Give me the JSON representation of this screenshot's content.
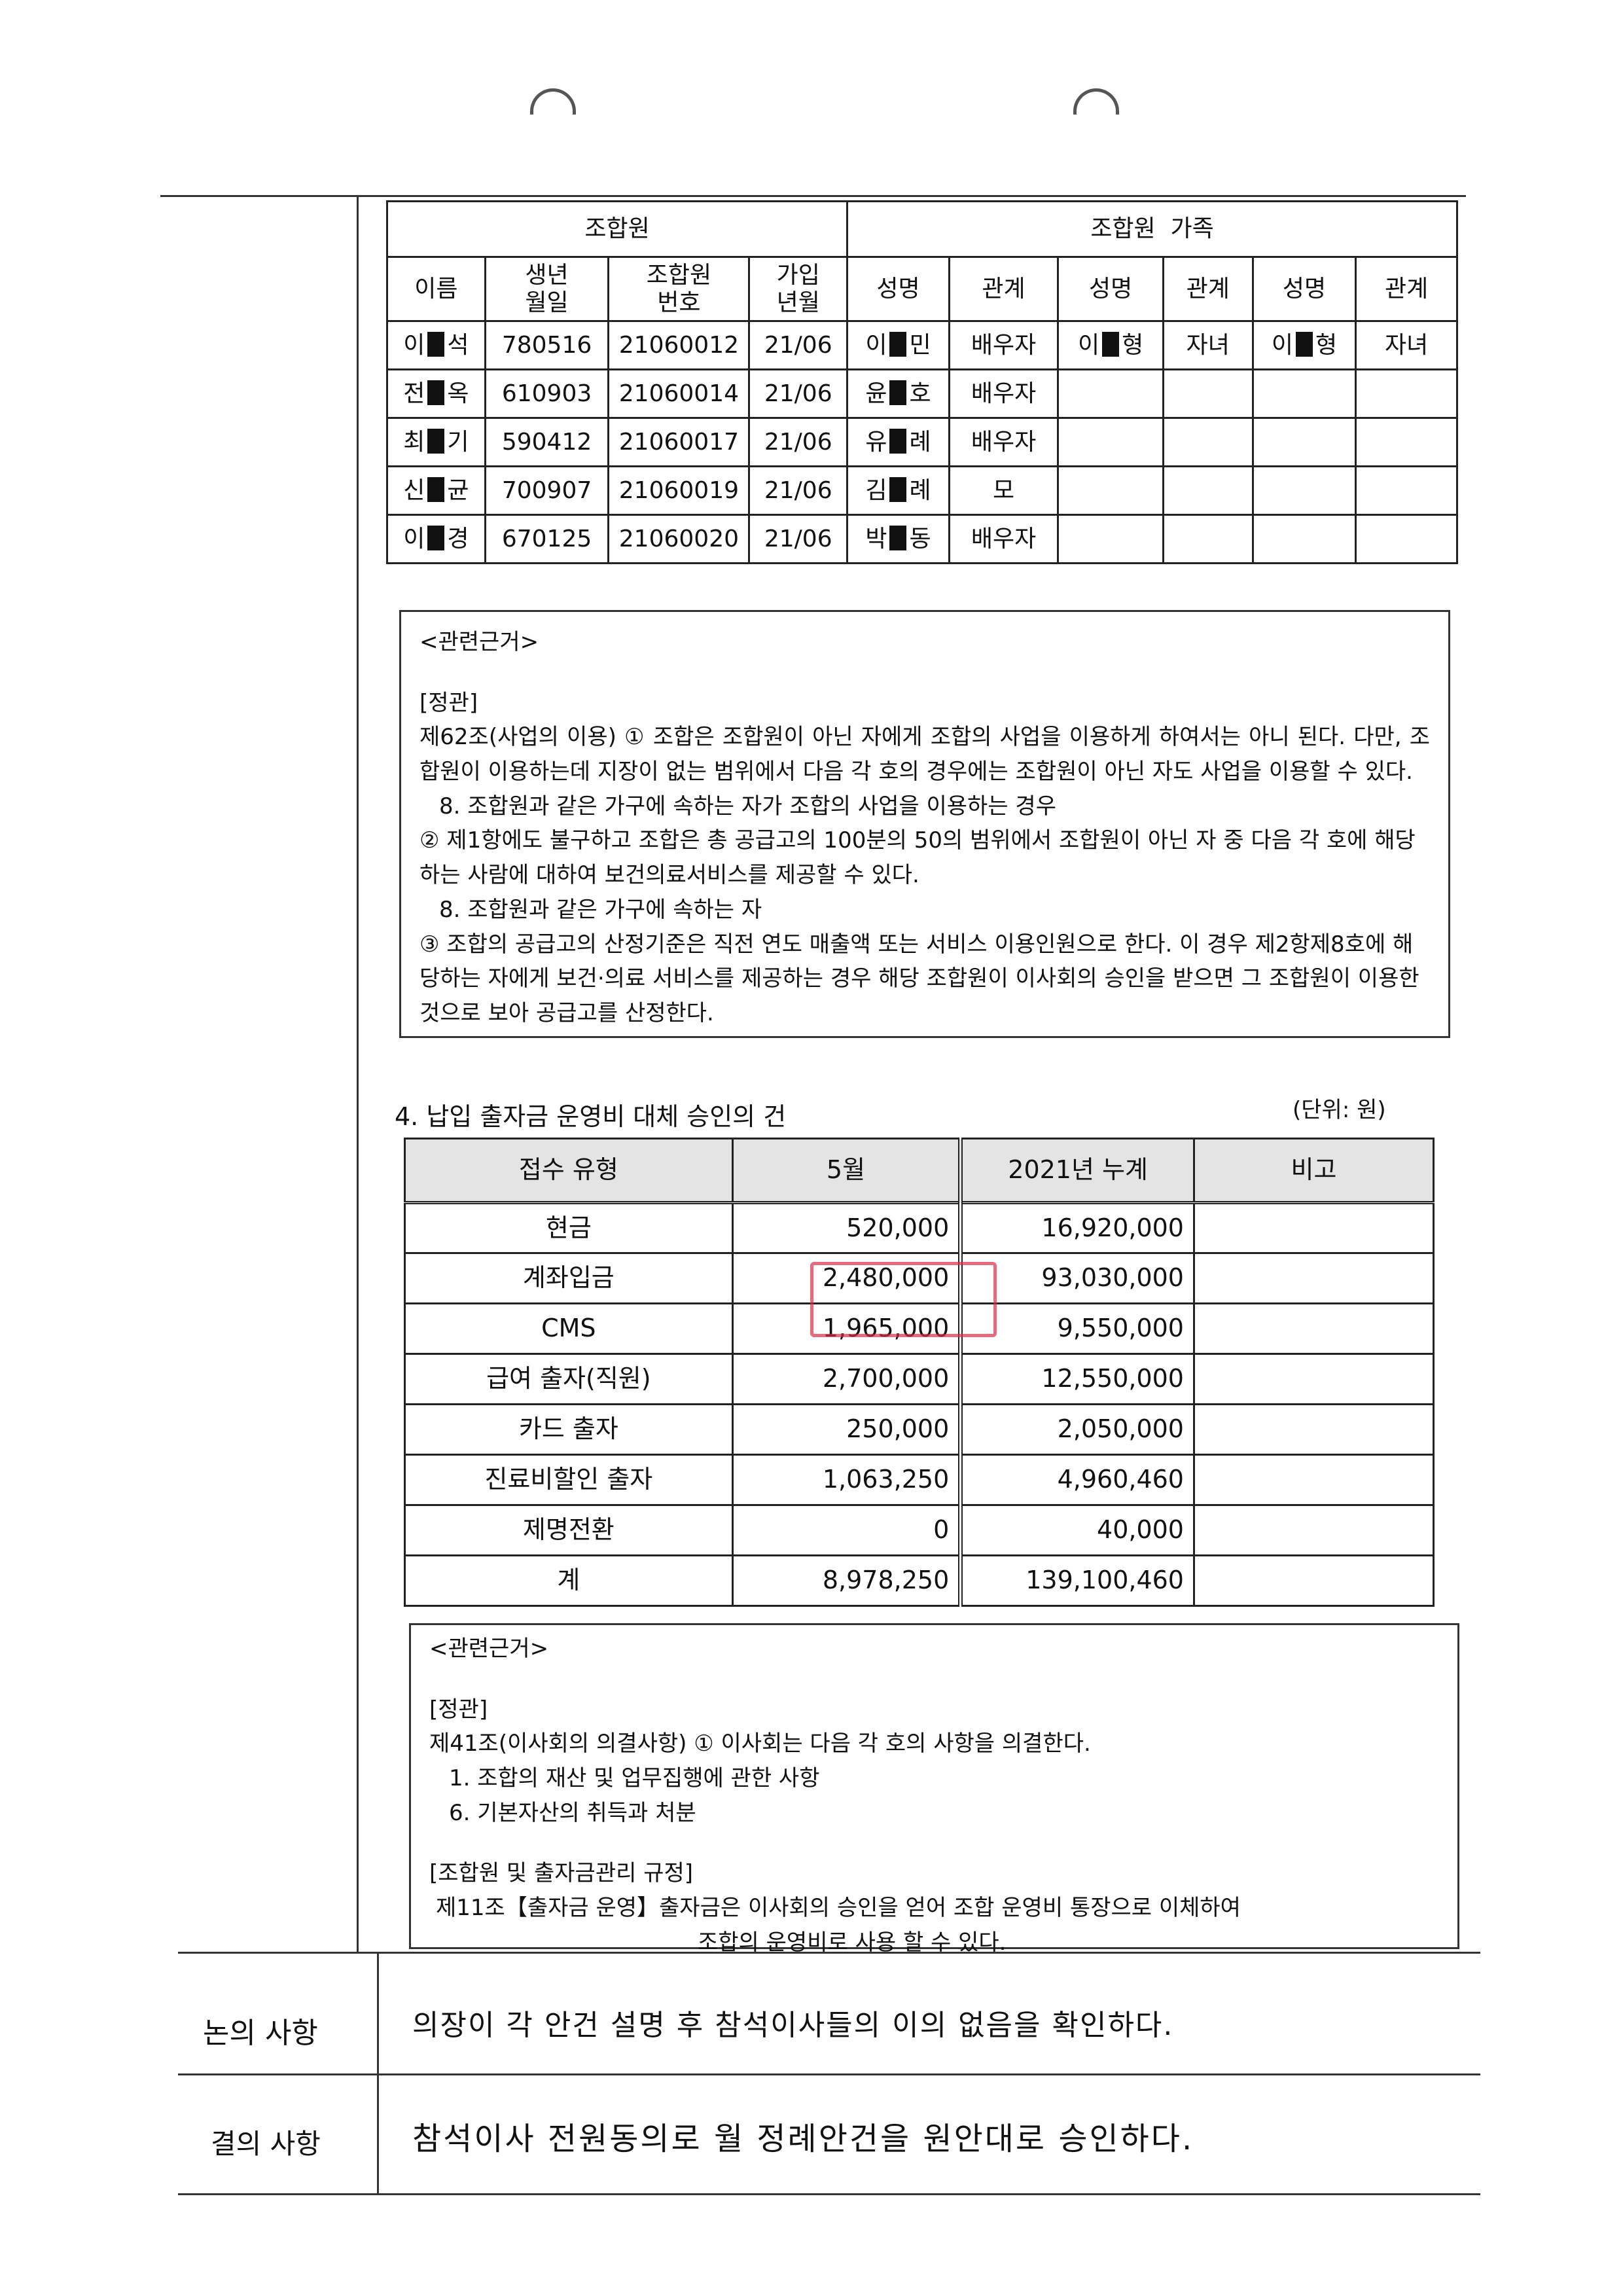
{
  "members_table": {
    "group_headers": [
      "조합원",
      "조합원  가족"
    ],
    "columns": [
      "이름",
      "생년\n월일",
      "조합원\n번호",
      "가입\n년월",
      "성명",
      "관계",
      "성명",
      "관계",
      "성명",
      "관계"
    ],
    "rows": [
      {
        "name": [
          "이",
          "석"
        ],
        "birth": "780516",
        "no": "21060012",
        "joined": "21/06",
        "family": [
          [
            [
              "이",
              "민"
            ],
            "배우자"
          ],
          [
            [
              "이",
              "형"
            ],
            "자녀"
          ],
          [
            [
              "이",
              "형"
            ],
            "자녀"
          ]
        ]
      },
      {
        "name": [
          "전",
          "옥"
        ],
        "birth": "610903",
        "no": "21060014",
        "joined": "21/06",
        "family": [
          [
            [
              "윤",
              "호"
            ],
            "배우자"
          ]
        ]
      },
      {
        "name": [
          "최",
          "기"
        ],
        "birth": "590412",
        "no": "21060017",
        "joined": "21/06",
        "family": [
          [
            [
              "유",
              "례"
            ],
            "배우자"
          ]
        ]
      },
      {
        "name": [
          "신",
          "균"
        ],
        "birth": "700907",
        "no": "21060019",
        "joined": "21/06",
        "family": [
          [
            [
              "김",
              "례"
            ],
            "모"
          ]
        ]
      },
      {
        "name": [
          "이",
          "경"
        ],
        "birth": "670125",
        "no": "21060020",
        "joined": "21/06",
        "family": [
          [
            [
              "박",
              "동"
            ],
            "배우자"
          ]
        ]
      }
    ]
  },
  "basis1": {
    "title": "<관련근거>",
    "section": "[정관]",
    "lines": [
      "제62조(사업의 이용) ① 조합은 조합원이 아닌 자에게 조합의 사업을 이용하게 하여서는 아니 된다. 다만, 조합원이 이용하는데 지장이 없는 범위에서 다음 각 호의 경우에는 조합원이 아닌 자도 사업을 이용할 수 있다.",
      "8. 조합원과 같은 가구에 속하는 자가 조합의 사업을 이용하는 경우",
      "② 제1항에도 불구하고 조합은 총 공급고의 100분의 50의 범위에서 조합원이 아닌 자 중 다음 각 호에 해당하는 사람에 대하여 보건의료서비스를 제공할 수 있다.",
      "8. 조합원과 같은 가구에 속하는 자",
      "③ 조합의 공급고의 산정기준은 직전 연도 매출액 또는 서비스 이용인원으로 한다. 이 경우 제2항제8호에 해당하는 자에게 보건·의료 서비스를 제공하는 경우 해당 조합원이 이사회의 승인을 받으면 그 조합원이 이용한 것으로 보아 공급고를 산정한다."
    ]
  },
  "section4": {
    "title": "4. 납입 출자금 운영비 대체 승인의 건",
    "unit": "(단위: 원)",
    "headers": [
      "접수 유형",
      "5월",
      "2021년 누계",
      "비고"
    ],
    "rows": [
      [
        "현금",
        "520,000",
        "16,920,000",
        ""
      ],
      [
        "계좌입금",
        "2,480,000",
        "93,030,000",
        ""
      ],
      [
        "CMS",
        "1,965,000",
        "9,550,000",
        ""
      ],
      [
        "급여 출자(직원)",
        "2,700,000",
        "12,550,000",
        ""
      ],
      [
        "카드 출자",
        "250,000",
        "2,050,000",
        ""
      ],
      [
        "진료비할인 출자",
        "1,063,250",
        "4,960,460",
        ""
      ],
      [
        "제명전환",
        "0",
        "40,000",
        ""
      ],
      [
        "계",
        "8,978,250",
        "139,100,460",
        ""
      ]
    ],
    "stamp_color": "#dc2846"
  },
  "basis2": {
    "title": "<관련근거>",
    "section1": "[정관]",
    "lines1": [
      "제41조(이사회의 의결사항) ① 이사회는 다음 각 호의 사항을 의결한다.",
      "1. 조합의 재산 및 업무집행에 관한 사항",
      "6. 기본자산의 취득과 처분"
    ],
    "section2": "[조합원 및 출자금관리 규정]",
    "lines2": [
      "제11조【출자금 운영】출자금은 이사회의 승인을 얻어 조합 운영비 통장으로 이체하여",
      "조합의 운영비로 사용 할 수 있다."
    ]
  },
  "discussion": {
    "label": "논의 사항",
    "text": "의장이 각 안건 설명 후 참석이사들의 이의 없음을 확인하다."
  },
  "resolution": {
    "label": "결의 사항",
    "text": "참석이사 전원동의로 월 정례안건을 원안대로 승인하다."
  }
}
